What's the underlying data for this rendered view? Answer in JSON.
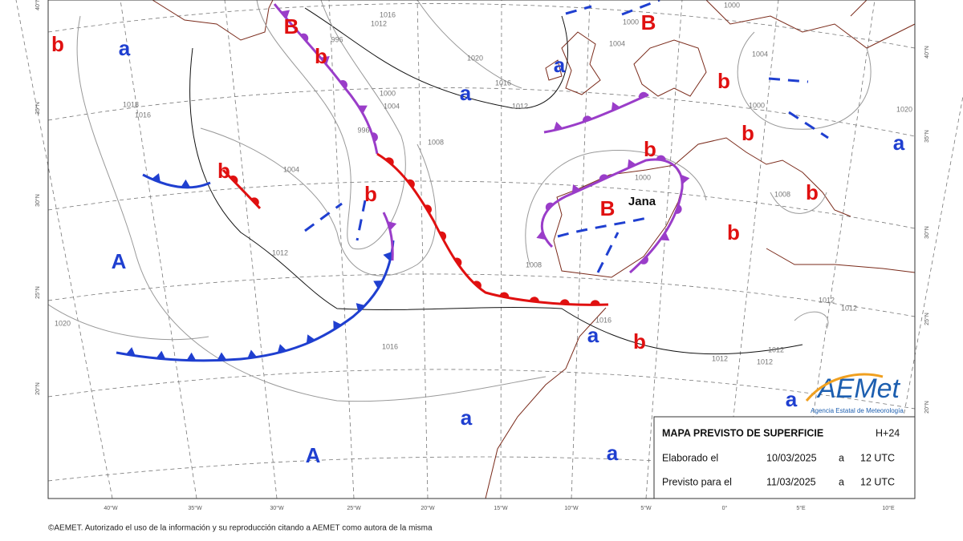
{
  "centers": [
    "B",
    "b",
    "a",
    "b",
    "a",
    "a",
    "B",
    "b",
    "b",
    "b",
    "a",
    "b",
    "b",
    "B",
    "b",
    "b",
    "A",
    "a",
    "b",
    "a",
    "a",
    "A",
    "a"
  ],
  "storm_name": "Jana",
  "isobar_labels": [
    "996",
    "1012",
    "1016",
    "1020",
    "1016",
    "1000",
    "1004",
    "996",
    "1012",
    "1008",
    "1004",
    "1018",
    "1016",
    "1012",
    "1008",
    "1004",
    "1000",
    "1000",
    "1004",
    "1000",
    "1020",
    "1000",
    "1008",
    "1012",
    "1012",
    "1012",
    "1012",
    "1012",
    "1016",
    "1016",
    "1020"
  ],
  "longitude_labels": [
    "40°W",
    "35°W",
    "30°W",
    "25°W",
    "20°W",
    "15°W",
    "10°W",
    "5°W",
    "0°",
    "5°E",
    "10°E"
  ],
  "latitude_labels_left": [
    "40°N",
    "35°N",
    "30°N",
    "25°N",
    "20°N"
  ],
  "latitude_labels_right": [
    "40°N",
    "35°N",
    "30°N",
    "25°N",
    "20°N"
  ],
  "info_box": {
    "title": "MAPA PREVISTO DE SUPERFICIE",
    "lead": "H+24",
    "rows": [
      [
        "Elaborado el",
        "10/03/2025",
        "a",
        "12 UTC"
      ],
      [
        "Previsto para el",
        "11/03/2025",
        "a",
        "12 UTC"
      ]
    ]
  },
  "logo": {
    "name": "AEMet",
    "subtitle": "Agencia Estatal de Meteorología"
  },
  "copyright": "©AEMET. Autorizado el uso de la información y su reproducción citando a AEMET como autora de la misma"
}
